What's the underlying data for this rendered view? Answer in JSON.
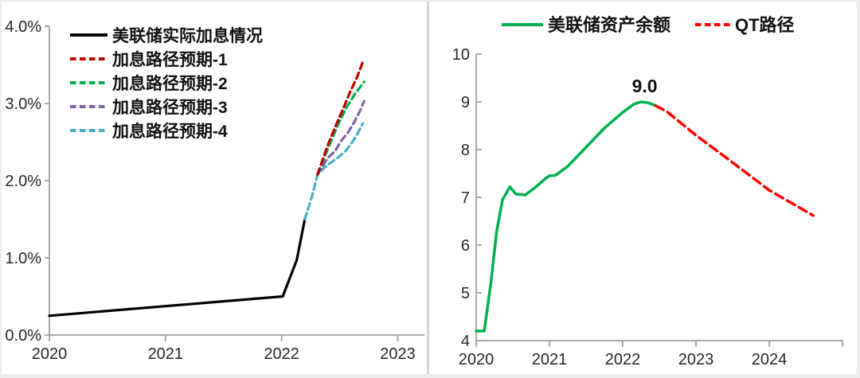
{
  "page": {
    "background": "#ffffff",
    "colors": {
      "axis": "#9e9e9e",
      "divider": "#d6d6d6",
      "text": "#262626"
    }
  },
  "chart_data": [
    {
      "id": "rate-hike-paths",
      "type": "line",
      "title": "",
      "xlabel": "",
      "ylabel": "",
      "xlim": [
        2020,
        2023.23
      ],
      "ylim": [
        0,
        4
      ],
      "grid": false,
      "legend_position": "upper-left",
      "x_ticks": [
        {
          "v": 2020,
          "label": "2020"
        },
        {
          "v": 2021,
          "label": "2021"
        },
        {
          "v": 2022,
          "label": "2022"
        },
        {
          "v": 2023,
          "label": "2023"
        }
      ],
      "y_ticks": [
        {
          "v": 0,
          "label": "0.0%"
        },
        {
          "v": 1,
          "label": "1.0%"
        },
        {
          "v": 2,
          "label": "2.0%"
        },
        {
          "v": 3,
          "label": "3.0%"
        },
        {
          "v": 4,
          "label": "4.0%"
        }
      ],
      "legend": [
        {
          "name": "actual",
          "label": "美联储实际加息情况",
          "color": "#000000",
          "style": "solid"
        },
        {
          "name": "path1",
          "label": "加息路径预期-1",
          "color": "#C00000",
          "style": "dashed"
        },
        {
          "name": "path2",
          "label": "加息路径预期-2",
          "color": "#00B050",
          "style": "dashed"
        },
        {
          "name": "path3",
          "label": "加息路径预期-3",
          "color": "#8064A2",
          "style": "dashed"
        },
        {
          "name": "path4",
          "label": "加息路径预期-4",
          "color": "#4BACC6",
          "style": "dashed"
        }
      ],
      "series": [
        {
          "name": "actual",
          "label": "美联储实际加息情况",
          "color": "#000000",
          "style": "solid",
          "points": [
            [
              2020.0,
              0.25
            ],
            [
              2022.01,
              0.5
            ],
            [
              2022.13,
              0.97
            ],
            [
              2022.2,
              1.5
            ]
          ]
        },
        {
          "name": "path4",
          "label": "加息路径预期-4",
          "color": "#4BACC6",
          "style": "dashed",
          "points": [
            [
              2022.2,
              1.5
            ],
            [
              2022.26,
              1.79
            ],
            [
              2022.31,
              2.08
            ],
            [
              2022.39,
              2.2
            ],
            [
              2022.47,
              2.28
            ],
            [
              2022.55,
              2.38
            ],
            [
              2022.59,
              2.46
            ],
            [
              2022.64,
              2.57
            ],
            [
              2022.7,
              2.74
            ]
          ]
        },
        {
          "name": "path3",
          "label": "加息路径预期-3",
          "color": "#8064A2",
          "style": "dashed",
          "points": [
            [
              2022.31,
              2.08
            ],
            [
              2022.4,
              2.3
            ],
            [
              2022.46,
              2.38
            ],
            [
              2022.51,
              2.51
            ],
            [
              2022.57,
              2.62
            ],
            [
              2022.63,
              2.77
            ],
            [
              2022.68,
              2.92
            ],
            [
              2022.71,
              3.03
            ]
          ]
        },
        {
          "name": "path2",
          "label": "加息路径预期-2",
          "color": "#00B050",
          "style": "dashed",
          "points": [
            [
              2022.31,
              2.08
            ],
            [
              2022.39,
              2.38
            ],
            [
              2022.49,
              2.74
            ],
            [
              2022.56,
              2.95
            ],
            [
              2022.63,
              3.12
            ],
            [
              2022.71,
              3.28
            ]
          ]
        },
        {
          "name": "path1",
          "label": "加息路径预期-1",
          "color": "#C00000",
          "style": "dashed",
          "points": [
            [
              2022.31,
              2.08
            ],
            [
              2022.39,
              2.43
            ],
            [
              2022.46,
              2.69
            ],
            [
              2022.53,
              2.93
            ],
            [
              2022.59,
              3.15
            ],
            [
              2022.65,
              3.34
            ],
            [
              2022.7,
              3.54
            ]
          ]
        }
      ]
    },
    {
      "id": "fed-balance-qt",
      "type": "line",
      "title": "",
      "xlabel": "",
      "ylabel": "",
      "xlim": [
        2020,
        2025.0
      ],
      "ylim": [
        4,
        10
      ],
      "grid": false,
      "legend_position": "top-center",
      "x_ticks": [
        {
          "v": 2020,
          "label": "2020"
        },
        {
          "v": 2021,
          "label": "2021"
        },
        {
          "v": 2022,
          "label": "2022"
        },
        {
          "v": 2023,
          "label": "2023"
        },
        {
          "v": 2024,
          "label": "2024"
        }
      ],
      "y_ticks": [
        {
          "v": 4,
          "label": "4"
        },
        {
          "v": 5,
          "label": "5"
        },
        {
          "v": 6,
          "label": "6"
        },
        {
          "v": 7,
          "label": "7"
        },
        {
          "v": 8,
          "label": "8"
        },
        {
          "v": 9,
          "label": "9"
        },
        {
          "v": 10,
          "label": "10"
        }
      ],
      "legend": [
        {
          "name": "balance",
          "label": "美联储资产余额",
          "color": "#00B050",
          "style": "solid"
        },
        {
          "name": "qt",
          "label": "QT路径",
          "color": "#FF0000",
          "style": "dashed"
        }
      ],
      "annotation": {
        "text": "9.0",
        "x": 2022.3,
        "y": 9.0
      },
      "series": [
        {
          "name": "balance",
          "label": "美联储资产余额",
          "color": "#00B050",
          "style": "solid",
          "points": [
            [
              2020.0,
              4.2
            ],
            [
              2020.11,
              4.2
            ],
            [
              2020.2,
              5.2
            ],
            [
              2020.28,
              6.3
            ],
            [
              2020.36,
              6.95
            ],
            [
              2020.46,
              7.22
            ],
            [
              2020.54,
              7.07
            ],
            [
              2020.67,
              7.05
            ],
            [
              2020.8,
              7.2
            ],
            [
              2020.95,
              7.4
            ],
            [
              2021.0,
              7.45
            ],
            [
              2021.08,
              7.46
            ],
            [
              2021.25,
              7.65
            ],
            [
              2021.5,
              8.05
            ],
            [
              2021.75,
              8.45
            ],
            [
              2022.0,
              8.78
            ],
            [
              2022.15,
              8.95
            ],
            [
              2022.25,
              9.0
            ],
            [
              2022.35,
              8.98
            ],
            [
              2022.45,
              8.92
            ]
          ]
        },
        {
          "name": "qt",
          "label": "QT路径",
          "color": "#FF0000",
          "style": "dashed",
          "points": [
            [
              2022.45,
              8.92
            ],
            [
              2022.6,
              8.8
            ],
            [
              2022.8,
              8.55
            ],
            [
              2023.0,
              8.3
            ],
            [
              2023.5,
              7.73
            ],
            [
              2024.0,
              7.15
            ],
            [
              2024.6,
              6.62
            ]
          ]
        }
      ]
    }
  ]
}
